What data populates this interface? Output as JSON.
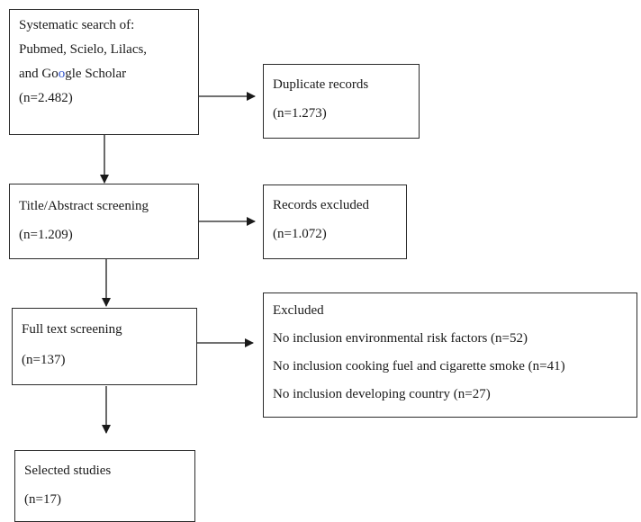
{
  "flowchart": {
    "search": {
      "line1": "Systematic search of:",
      "line2": "Pubmed, Scielo, Lilacs,",
      "line3_pre": "and Go",
      "line3_o": "o",
      "line3_post": "gle Scholar",
      "count": "(n=2.482)"
    },
    "duplicates": {
      "title": "Duplicate records",
      "count": "(n=1.273)"
    },
    "screening": {
      "title": "Title/Abstract screening",
      "count": "(n=1.209)"
    },
    "records_excluded": {
      "title": "Records excluded",
      "count": "(n=1.072)"
    },
    "fulltext": {
      "title": "Full text screening",
      "count": "(n=137)"
    },
    "excluded": {
      "title": "Excluded",
      "reasons": [
        "No inclusion environmental risk factors (n=52)",
        "No inclusion cooking fuel and cigarette smoke (n=41)",
        "No inclusion developing country (n=27)"
      ]
    },
    "selected": {
      "title": "Selected studies",
      "count": "(n=17)"
    }
  }
}
